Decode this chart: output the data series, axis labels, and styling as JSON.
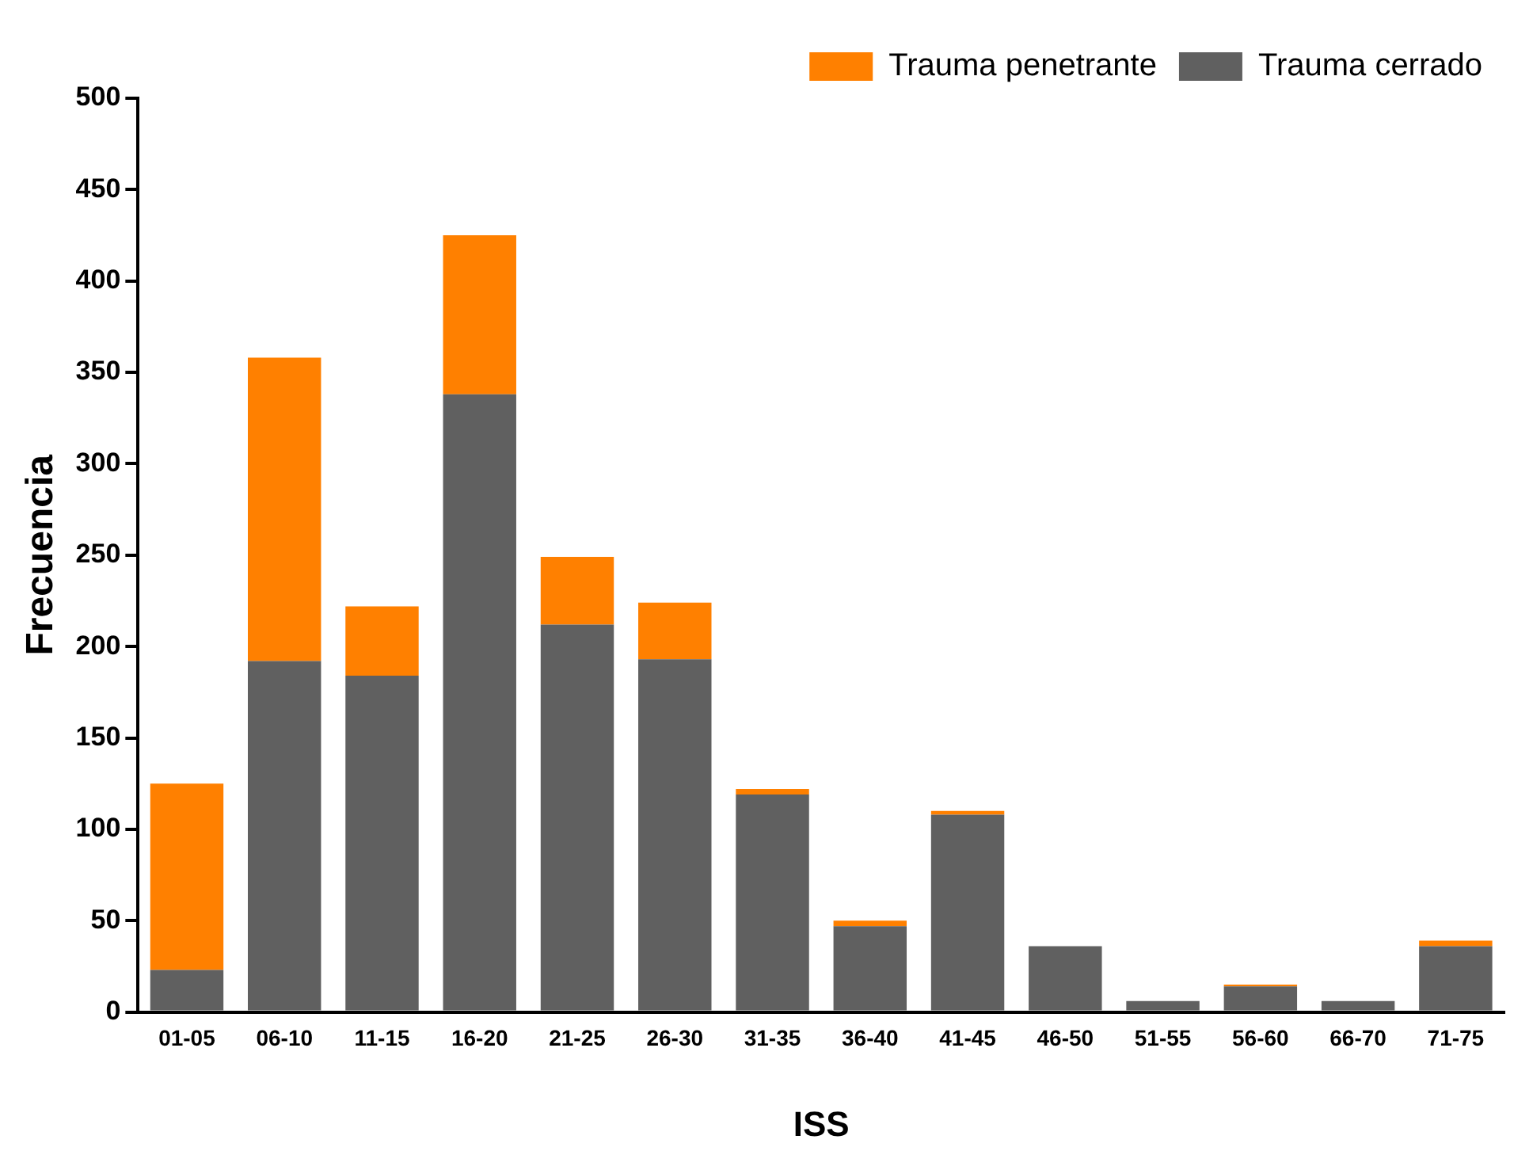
{
  "chart_data": {
    "type": "bar",
    "stacked": true,
    "xlabel": "ISS",
    "ylabel": "Frecuencia",
    "categories": [
      "01-05",
      "06-10",
      "11-15",
      "16-20",
      "21-25",
      "26-30",
      "31-35",
      "36-40",
      "41-45",
      "46-50",
      "51-55",
      "56-60",
      "66-70",
      "71-75"
    ],
    "series": [
      {
        "name": "Trauma cerrado",
        "color": "#606060",
        "values": [
          23,
          192,
          184,
          338,
          212,
          193,
          119,
          47,
          108,
          36,
          6,
          14,
          6,
          36
        ]
      },
      {
        "name": "Trauma penetrante",
        "color": "#ff8000",
        "values": [
          102,
          166,
          38,
          87,
          37,
          31,
          3,
          3,
          2,
          0,
          0,
          1,
          0,
          3
        ]
      }
    ],
    "ylim": [
      0,
      500
    ],
    "yticks": [
      0,
      50,
      100,
      150,
      200,
      250,
      300,
      350,
      400,
      450,
      500
    ],
    "grid": false,
    "legend": "top right"
  }
}
